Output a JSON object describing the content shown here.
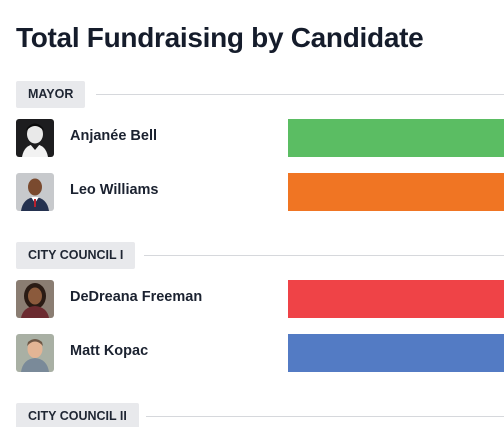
{
  "title": "Total Fundraising by Candidate",
  "sections": [
    {
      "label": "MAYOR",
      "candidates": [
        {
          "name": "Anjanée Bell",
          "color": "#5bbd63",
          "avatar_icon": "anjanee-bell-photo"
        },
        {
          "name": "Leo Williams",
          "color": "#f07523",
          "avatar_icon": "leo-williams-photo"
        }
      ]
    },
    {
      "label": "CITY COUNCIL I",
      "candidates": [
        {
          "name": "DeDreana Freeman",
          "color": "#ef4347",
          "avatar_icon": "dedreana-freeman-photo"
        },
        {
          "name": "Matt Kopac",
          "color": "#537bc4",
          "avatar_icon": "matt-kopac-photo"
        }
      ]
    },
    {
      "label": "CITY COUNCIL II",
      "candidates": []
    }
  ]
}
